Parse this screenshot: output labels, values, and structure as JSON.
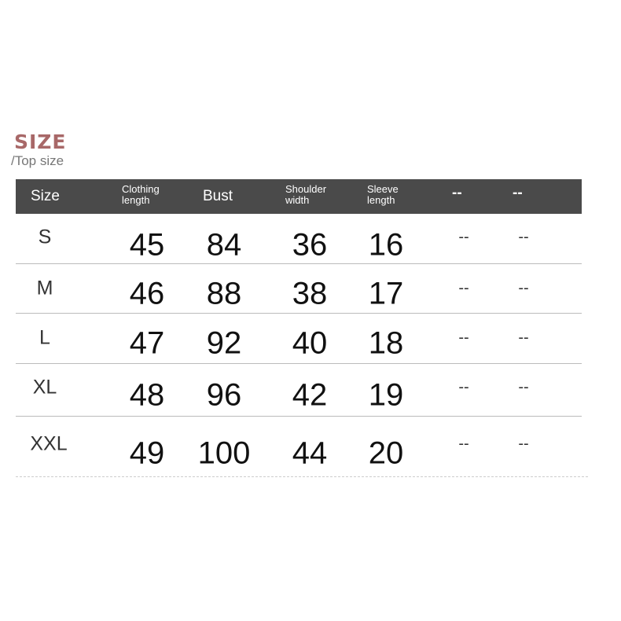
{
  "title": "SIZE",
  "subtitle": "/Top size",
  "header": [
    "Size",
    "Clothing length",
    "Bust",
    "Shoulder width",
    "Sleeve length",
    "--",
    "--"
  ],
  "header_color": "#4a4a4a",
  "title_color": "#a86868",
  "rows": [
    {
      "size": "S",
      "values": [
        "45",
        "84",
        "36",
        "16",
        "--",
        "--"
      ]
    },
    {
      "size": "M",
      "values": [
        "46",
        "88",
        "38",
        "17",
        "--",
        "--"
      ]
    },
    {
      "size": "L",
      "values": [
        "47",
        "92",
        "40",
        "18",
        "--",
        "--"
      ]
    },
    {
      "size": "XL",
      "values": [
        "48",
        "96",
        "42",
        "19",
        "--",
        "--"
      ]
    },
    {
      "size": "XXL",
      "values": [
        "49",
        "100",
        "44",
        "20",
        "--",
        "--"
      ]
    }
  ]
}
